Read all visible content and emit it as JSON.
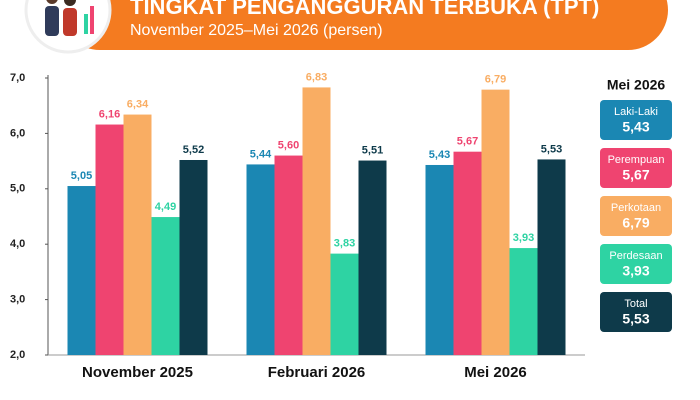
{
  "chart_data": {
    "type": "bar",
    "title": "TINGKAT PENGANGGURAN TERBUKA (TPT)",
    "subtitle": "November 2025–Mei 2026 (persen)",
    "categories": [
      "November 2025",
      "Februari 2026",
      "Mei 2026"
    ],
    "series": [
      {
        "name": "Laki-Laki",
        "color": "#1b87b3",
        "values": [
          5.05,
          5.44,
          5.43
        ],
        "value_labels": [
          "5,05",
          "5,44",
          "5,43"
        ]
      },
      {
        "name": "Perempuan",
        "color": "#ef4470",
        "values": [
          6.16,
          5.6,
          5.67
        ],
        "value_labels": [
          "6,16",
          "5,60",
          "5,67"
        ]
      },
      {
        "name": "Perkotaan",
        "color": "#f9ad63",
        "values": [
          6.34,
          6.83,
          6.79
        ],
        "value_labels": [
          "6,34",
          "6,83",
          "6,79"
        ]
      },
      {
        "name": "Perdesaan",
        "color": "#2ed3a3",
        "values": [
          4.49,
          3.83,
          3.93
        ],
        "value_labels": [
          "4,49",
          "3,83",
          "3,93"
        ]
      },
      {
        "name": "Total",
        "color": "#0e3a4a",
        "values": [
          5.52,
          5.51,
          5.53
        ],
        "value_labels": [
          "5,52",
          "5,51",
          "5,53"
        ]
      }
    ],
    "ylim": [
      2,
      7
    ],
    "yticks": [
      {
        "value": 2,
        "label": "2,0"
      },
      {
        "value": 3,
        "label": "3,0"
      },
      {
        "value": 4,
        "label": "4,0"
      },
      {
        "value": 5,
        "label": "5,0"
      },
      {
        "value": 6,
        "label": "6,0"
      },
      {
        "value": 7,
        "label": "7,0"
      }
    ],
    "grid": false
  }
}
